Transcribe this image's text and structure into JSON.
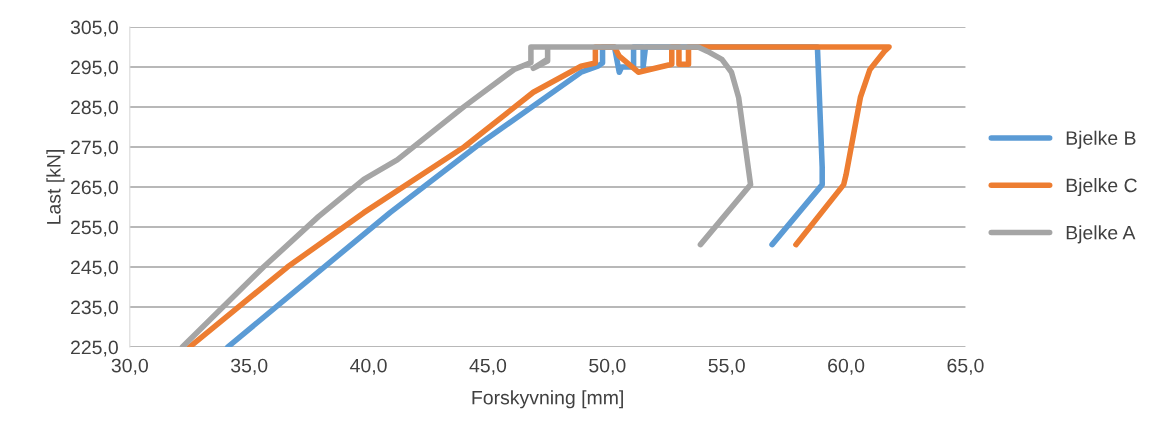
{
  "chart_data": {
    "type": "line",
    "xlabel": "Forskyvning [mm]",
    "ylabel": "Last [kN]",
    "xlim": [
      30,
      65
    ],
    "ylim": [
      225,
      305
    ],
    "xticks": [
      {
        "value": 30,
        "label": "30,0"
      },
      {
        "value": 35,
        "label": "35,0"
      },
      {
        "value": 40,
        "label": "40,0"
      },
      {
        "value": 45,
        "label": "45,0"
      },
      {
        "value": 50,
        "label": "50,0"
      },
      {
        "value": 55,
        "label": "55,0"
      },
      {
        "value": 60,
        "label": "60,0"
      },
      {
        "value": 65,
        "label": "65,0"
      }
    ],
    "yticks": [
      {
        "value": 225,
        "label": "225,0"
      },
      {
        "value": 235,
        "label": "235,0"
      },
      {
        "value": 245,
        "label": "245,0"
      },
      {
        "value": 255,
        "label": "255,0"
      },
      {
        "value": 265,
        "label": "265,0"
      },
      {
        "value": 275,
        "label": "275,0"
      },
      {
        "value": 285,
        "label": "285,0"
      },
      {
        "value": 295,
        "label": "295,0"
      },
      {
        "value": 305,
        "label": "305,0"
      }
    ],
    "grid": "y",
    "legend": "right",
    "marker": "none",
    "line_style": "solid",
    "series": [
      {
        "name": "Bjelke B",
        "color": "#5b9bd5",
        "x": [
          34.1,
          38.1,
          40.9,
          44.7,
          48.9,
          49.6,
          49.8,
          49.8,
          50.3,
          50.5,
          50.6,
          51.1,
          51.1,
          51.5,
          51.5,
          51.6,
          58.8,
          59.0,
          59.0,
          56.9
        ],
        "values": [
          225,
          244.8,
          258.6,
          276,
          293.7,
          295.2,
          296,
          300,
          300,
          293.7,
          295,
          295,
          300,
          300,
          295,
          300,
          300,
          270,
          265.6,
          250.6
        ]
      },
      {
        "name": "Bjelke C",
        "color": "#ed7d31",
        "x": [
          32.5,
          36.6,
          39.8,
          44.0,
          46.9,
          48.9,
          49.5,
          49.5,
          50.3,
          50.5,
          51.3,
          52.7,
          52.7,
          53.0,
          53.0,
          53.4,
          53.4,
          61.8,
          61.6,
          61.0,
          60.6,
          60.0,
          59.9,
          57.9
        ],
        "values": [
          225,
          245,
          258.6,
          275,
          288.7,
          295.2,
          296,
          300,
          300,
          297.7,
          293.7,
          295.7,
          300,
          300,
          295.7,
          295.7,
          300,
          300,
          298.9,
          294.4,
          287.4,
          268.1,
          265.6,
          250.6
        ]
      },
      {
        "name": "Bjelke A",
        "color": "#a5a5a5",
        "x": [
          32.2,
          35.6,
          37.9,
          39.8,
          41.2,
          44.0,
          46.1,
          46.8,
          46.8,
          47.5,
          47.5,
          46.9,
          47.5,
          47.5,
          53.8,
          54.2,
          54.8,
          55.2,
          55.5,
          56.0,
          53.9
        ],
        "values": [
          225,
          245,
          257.6,
          266.9,
          271.8,
          285.1,
          294.4,
          296.1,
          300,
          300,
          296.5,
          294.7,
          297,
          300,
          300,
          298.9,
          296.9,
          293.7,
          287.4,
          265.6,
          250.6
        ]
      }
    ]
  }
}
